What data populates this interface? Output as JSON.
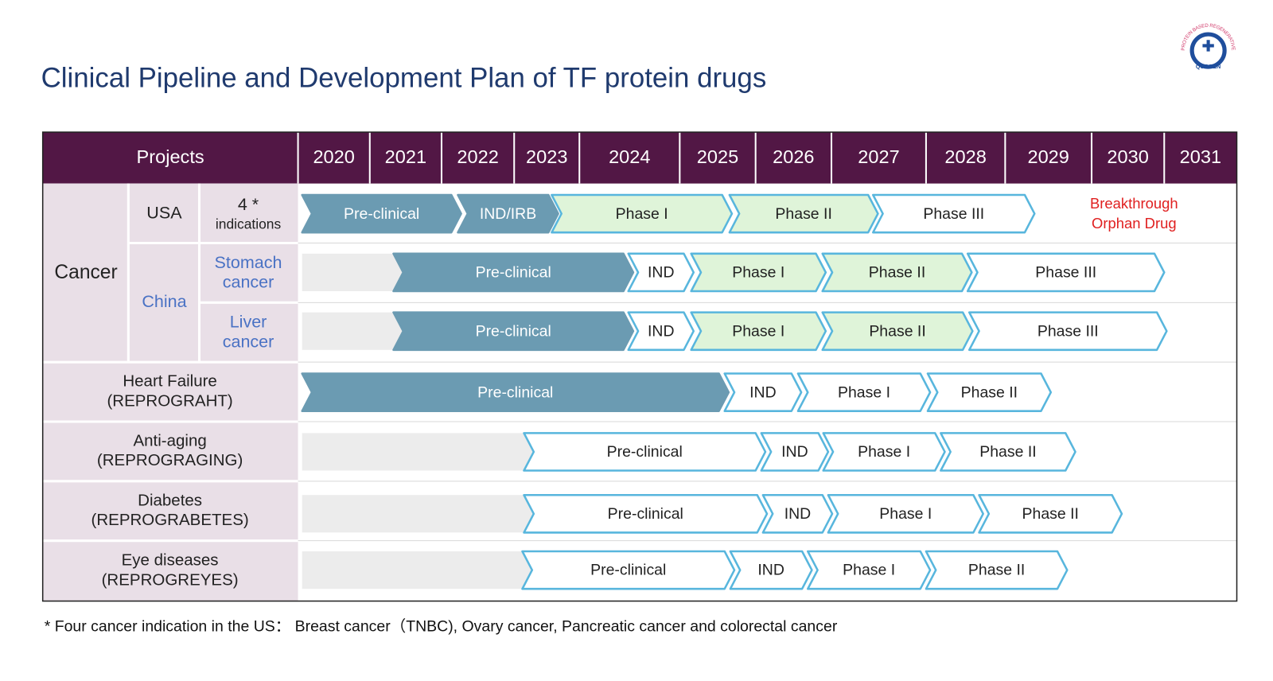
{
  "title": "Clinical Pipeline and Development Plan of TF protein drugs",
  "logo": {
    "arc": "PROTEIN BASED REGENERATIVE MEDICINE",
    "name": "QURGEN"
  },
  "table": {
    "header": {
      "projects": "Projects",
      "years": [
        "2020",
        "2021",
        "2022",
        "2023",
        "2024",
        "2025",
        "2026",
        "2027",
        "2028",
        "2029",
        "2030",
        "2031"
      ]
    },
    "cancer": {
      "label": "Cancer",
      "usa": {
        "label": "USA",
        "indication": [
          "4 *",
          "indications"
        ],
        "phases": [
          "Pre-clinical",
          "IND/IRB",
          "Phase I",
          "Phase II",
          "Phase III"
        ],
        "note": [
          "Breakthrough",
          "Orphan Drug"
        ]
      },
      "china": {
        "label": "China",
        "rows": [
          {
            "label": [
              "Stomach",
              "cancer"
            ],
            "phases": [
              "Pre-clinical",
              "IND",
              "Phase I",
              "Phase II",
              "Phase III"
            ]
          },
          {
            "label": [
              "Liver",
              "cancer"
            ],
            "phases": [
              "Pre-clinical",
              "IND",
              "Phase I",
              "Phase II",
              "Phase III"
            ]
          }
        ]
      }
    },
    "projects": [
      {
        "label": [
          "Heart Failure",
          "(REPROGRAHT)"
        ],
        "phases": [
          "Pre-clinical",
          "IND",
          "Phase I",
          "Phase II"
        ]
      },
      {
        "label": [
          "Anti-aging",
          "(REPROGRAGING)"
        ],
        "phases": [
          "Pre-clinical",
          "IND",
          "Phase I",
          "Phase II"
        ]
      },
      {
        "label": [
          "Diabetes",
          "(REPROGRABETES)"
        ],
        "phases": [
          "Pre-clinical",
          "IND",
          "Phase I",
          "Phase II"
        ]
      },
      {
        "label": [
          "Eye diseases",
          "(REPROGREYES)"
        ],
        "phases": [
          "Pre-clinical",
          "IND",
          "Phase I",
          "Phase II"
        ]
      }
    ]
  },
  "footnote": "* Four cancer indication in the US：  Breast cancer（TNBC), Ovary cancer, Pancreatic cancer and colorectal cancer"
}
